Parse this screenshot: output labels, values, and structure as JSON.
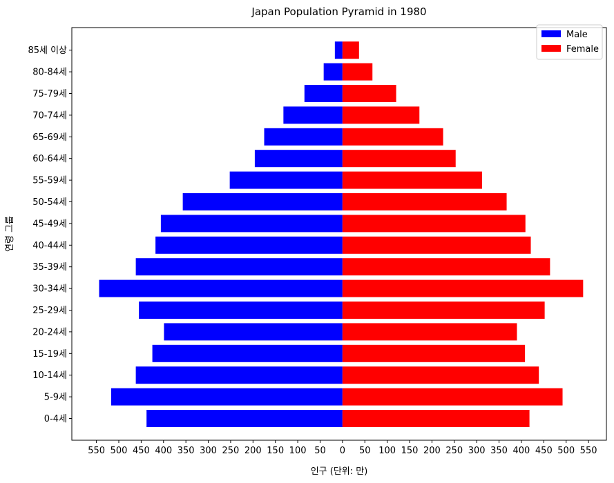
{
  "chart_data": {
    "type": "bar",
    "orientation": "horizontal",
    "title": "Japan Population Pyramid in 1980",
    "xlabel": "인구 (단위: 만)",
    "ylabel": "연령 그룹",
    "categories": [
      "0-4세",
      "5-9세",
      "10-14세",
      "15-19세",
      "20-24세",
      "25-29세",
      "30-34세",
      "35-39세",
      "40-44세",
      "45-49세",
      "50-54세",
      "55-59세",
      "60-64세",
      "65-69세",
      "70-74세",
      "75-79세",
      "80-84세",
      "85세 이상"
    ],
    "x_ticks": [
      "550",
      "500",
      "450",
      "400",
      "350",
      "300",
      "250",
      "200",
      "150",
      "100",
      "50",
      "0",
      "50",
      "100",
      "150",
      "200",
      "250",
      "300",
      "350",
      "400",
      "450",
      "500",
      "550"
    ],
    "xlim": [
      -605,
      590
    ],
    "legend_position": "top-right",
    "series": [
      {
        "name": "Male",
        "color": "#0000ff",
        "values": [
          438,
          517,
          462,
          425,
          399,
          455,
          544,
          462,
          418,
          406,
          357,
          252,
          196,
          175,
          132,
          85,
          42,
          17
        ]
      },
      {
        "name": "Female",
        "color": "#ff0000",
        "values": [
          418,
          492,
          439,
          408,
          390,
          452,
          538,
          464,
          421,
          409,
          367,
          312,
          253,
          225,
          172,
          120,
          67,
          37
        ]
      }
    ]
  }
}
